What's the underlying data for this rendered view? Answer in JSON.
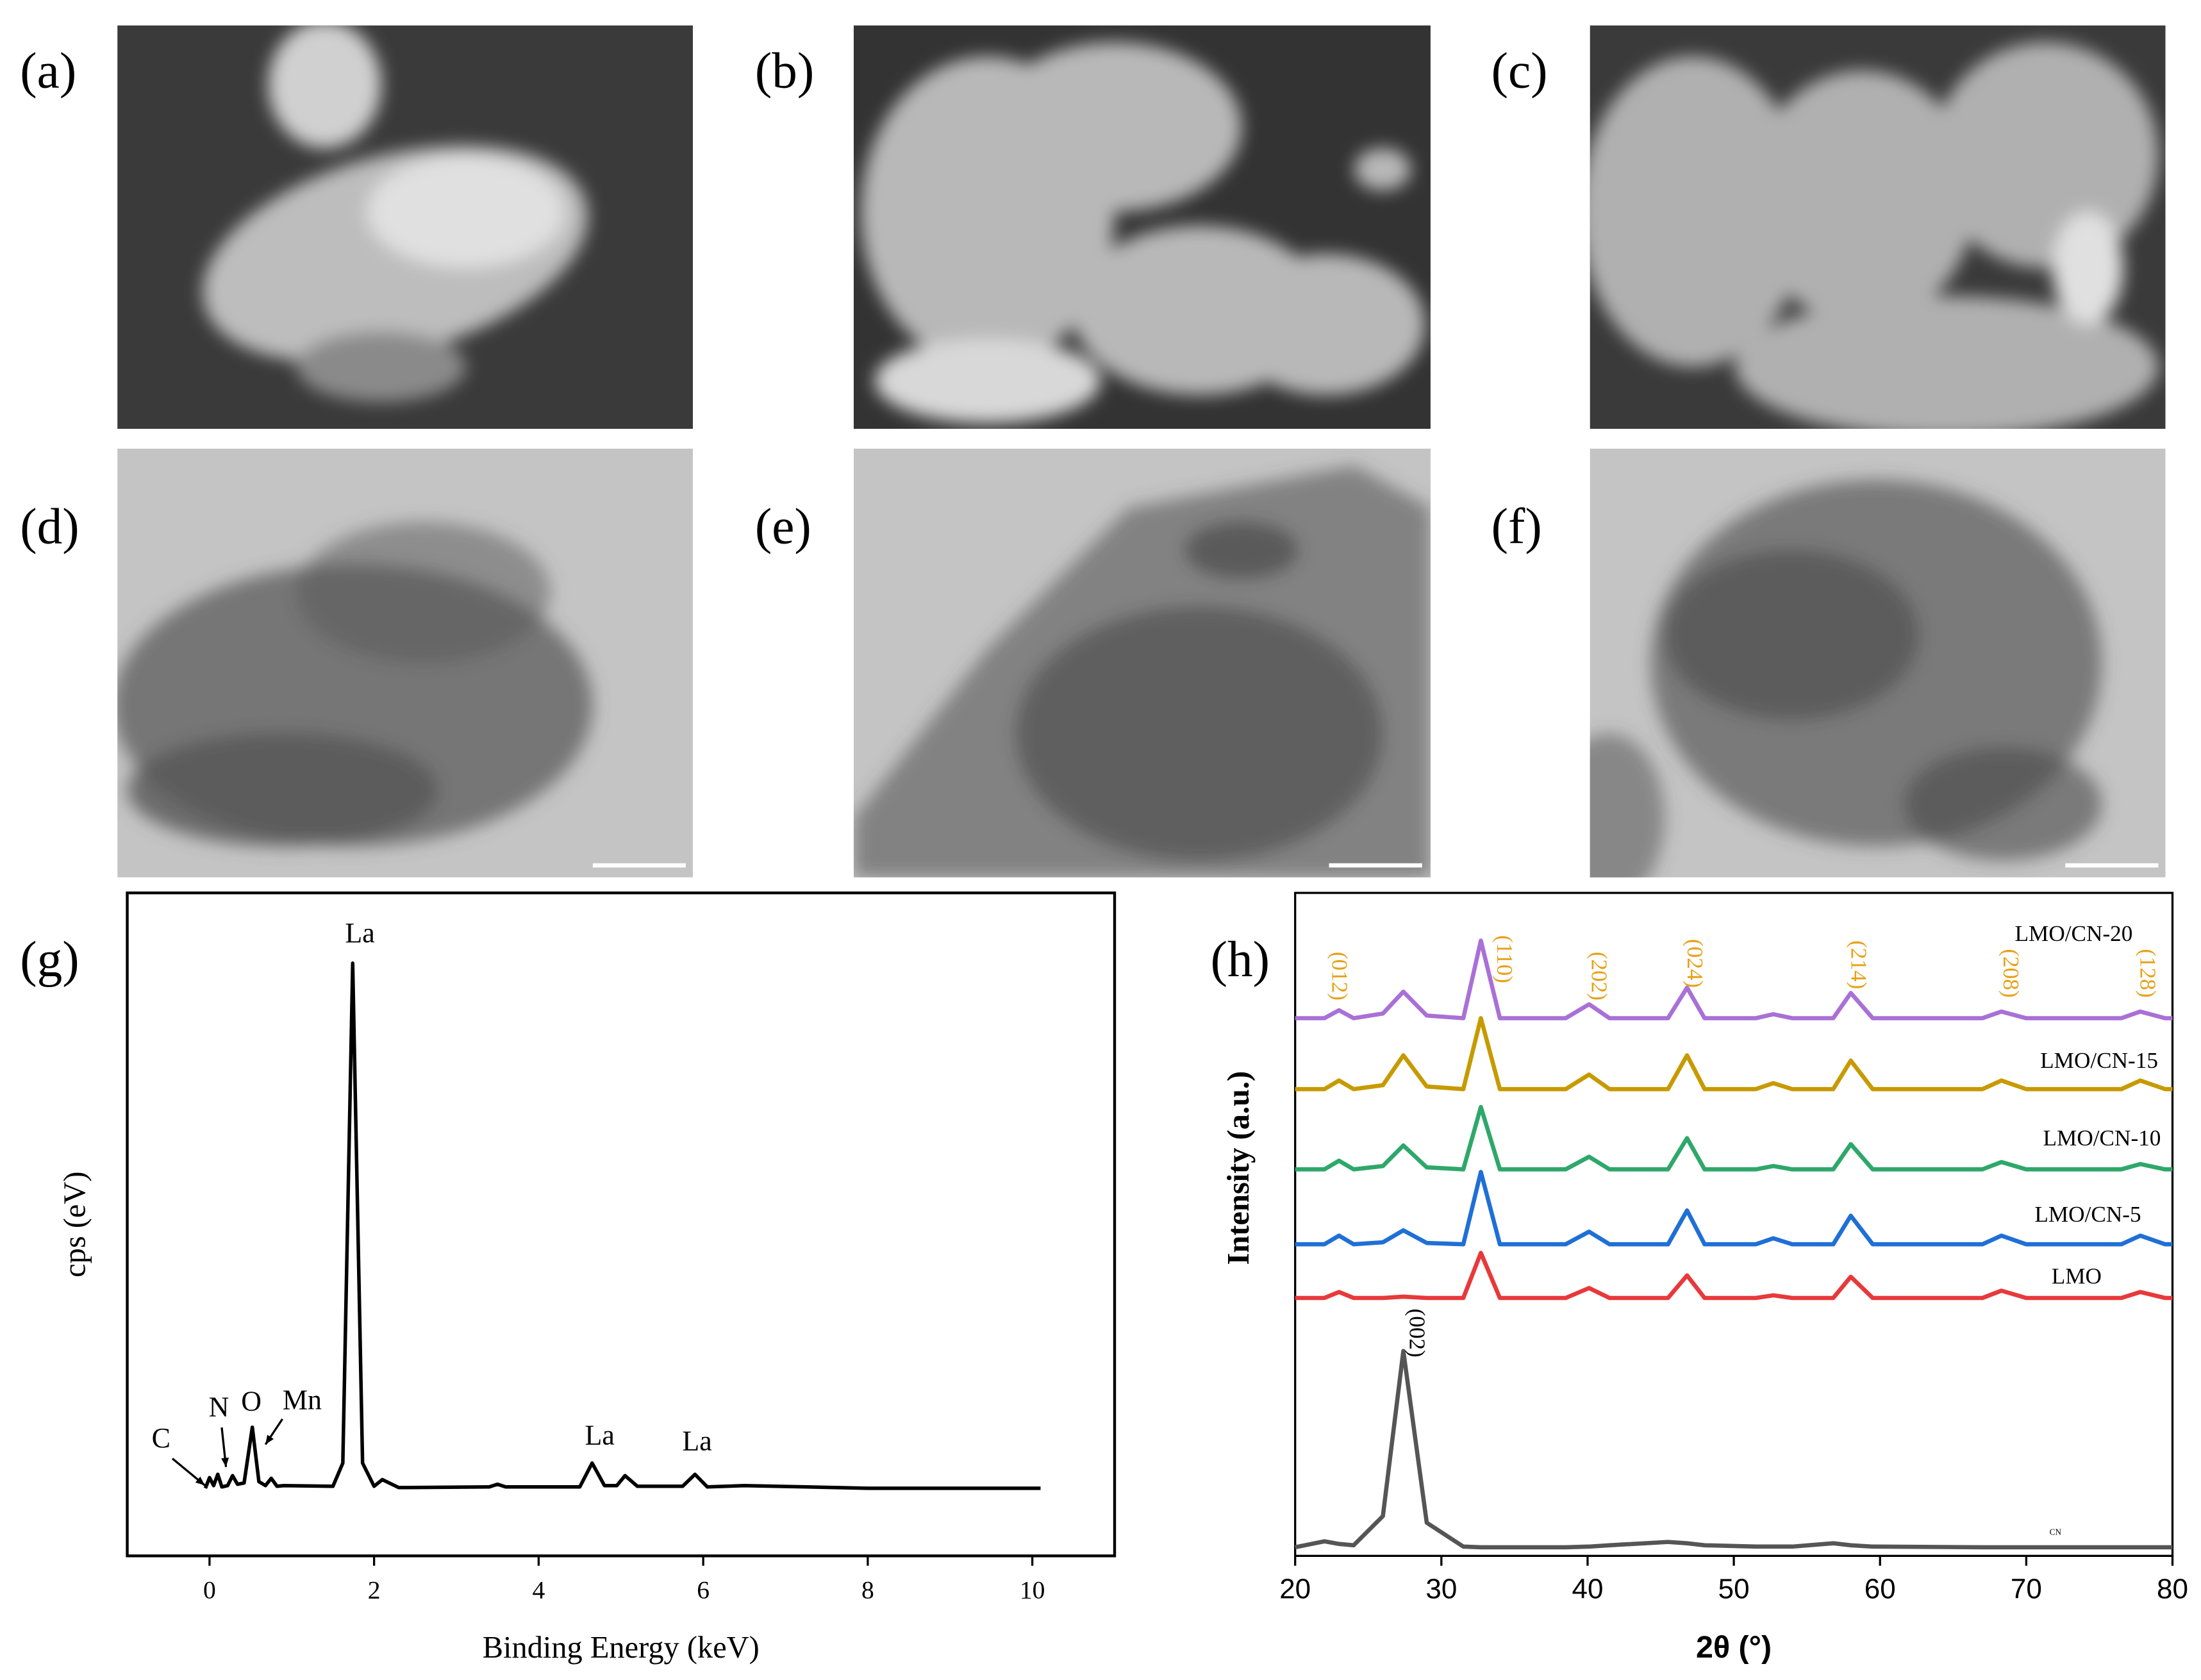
{
  "panel_labels": [
    "(a)",
    "(b)",
    "(c)",
    "(d)",
    "(e)",
    "(f)",
    "(g)",
    "(h)"
  ],
  "chart_data": [
    {
      "type": "line",
      "xlabel": "Binding Energy (keV)",
      "ylabel": "cps (eV)",
      "xlim": [
        -1,
        11
      ],
      "xticks": [
        0,
        2,
        4,
        6,
        8,
        10
      ],
      "ylim": [
        0,
        100
      ],
      "x": [
        -0.05,
        0,
        0.05,
        0.1,
        0.15,
        0.22,
        0.28,
        0.34,
        0.42,
        0.52,
        0.6,
        0.68,
        0.75,
        0.82,
        0.9,
        1.5,
        1.62,
        1.74,
        1.86,
        2.0,
        2.1,
        2.3,
        3.4,
        3.5,
        3.6,
        4.5,
        4.65,
        4.8,
        4.95,
        5.05,
        5.2,
        5.75,
        5.9,
        6.05,
        6.5,
        8,
        10.1
      ],
      "series": [
        {
          "color": "#000000",
          "values": [
            10.2,
            11.8,
            10.6,
            12.3,
            10.4,
            10.6,
            12.1,
            10.8,
            11,
            19.4,
            11.2,
            10.6,
            11.7,
            10.5,
            10.6,
            10.5,
            14,
            89.4,
            14,
            10.5,
            11.5,
            10.3,
            10.4,
            10.8,
            10.4,
            10.4,
            14,
            10.6,
            10.6,
            12.1,
            10.5,
            10.5,
            12.3,
            10.4,
            10.6,
            10.2,
            10.2
          ]
        }
      ],
      "annotations": [
        "La",
        "La",
        "La",
        "C",
        "N",
        "O",
        "Mn"
      ]
    },
    {
      "type": "line",
      "xlabel": "2θ (°)",
      "ylabel": "Intensity (a.u.)",
      "xlim": [
        20,
        80
      ],
      "xticks": [
        20,
        30,
        40,
        50,
        60,
        70,
        80
      ],
      "ylim": [
        0,
        100
      ],
      "x": [
        20,
        22,
        23,
        24,
        26,
        27.4,
        29,
        31.5,
        32.7,
        34,
        38.5,
        40.1,
        41.5,
        45.5,
        46.8,
        48,
        51.5,
        52.7,
        54,
        56.8,
        58,
        59.5,
        67,
        68.3,
        70,
        76.5,
        77.8,
        79.5,
        80
      ],
      "series": [
        {
          "name": "LMO/CN-20",
          "color": "#a970d6",
          "values": [
            81.1,
            81.1,
            82.3,
            81.1,
            81.8,
            85.1,
            81.5,
            81.1,
            92.8,
            81.1,
            81.1,
            83.2,
            81.1,
            81.1,
            85.7,
            81.1,
            81.1,
            81.7,
            81.1,
            81.1,
            84.9,
            81.1,
            81.1,
            82.1,
            81.1,
            81.1,
            82.1,
            81.1,
            81.1
          ]
        },
        {
          "name": "LMO/CN-15",
          "color": "#c79a00",
          "values": [
            70.4,
            70.4,
            71.7,
            70.4,
            71,
            75.5,
            70.8,
            70.4,
            81.1,
            70.4,
            70.4,
            72.6,
            70.4,
            70.4,
            75.5,
            70.4,
            70.4,
            71.3,
            70.4,
            70.4,
            74.7,
            70.4,
            70.4,
            71.7,
            70.4,
            70.4,
            71.7,
            70.4,
            70.4
          ]
        },
        {
          "name": "LMO/CN-10",
          "color": "#2ea86a",
          "values": [
            58.3,
            58.3,
            59.6,
            58.3,
            58.8,
            61.9,
            58.6,
            58.3,
            67.7,
            58.3,
            58.3,
            60.2,
            58.3,
            58.3,
            63,
            58.3,
            58.3,
            58.8,
            58.3,
            58.3,
            62.1,
            58.3,
            58.3,
            59.4,
            58.3,
            58.3,
            59.1,
            58.3,
            58.3
          ]
        },
        {
          "name": "LMO/CN-5",
          "color": "#1f6fd6",
          "values": [
            47,
            47,
            48.3,
            47,
            47.3,
            49.1,
            47.2,
            47,
            57.9,
            47,
            47,
            48.9,
            47,
            47,
            52.1,
            47,
            47,
            47.9,
            47,
            47,
            51.3,
            47,
            47,
            48.3,
            47,
            47,
            48.3,
            47,
            47
          ]
        },
        {
          "name": "LMO",
          "color": "#e8393a",
          "values": [
            38.9,
            38.9,
            39.8,
            38.9,
            38.9,
            39.1,
            38.9,
            38.9,
            45.7,
            38.9,
            38.9,
            40.4,
            38.9,
            38.9,
            42.3,
            38.9,
            38.9,
            39.3,
            38.9,
            38.9,
            42.1,
            38.9,
            38.9,
            40,
            38.9,
            38.9,
            39.8,
            38.9,
            38.9
          ]
        },
        {
          "name": "CN",
          "color": "#555555",
          "values": [
            1.3,
            2.2,
            1.8,
            1.6,
            6,
            30.9,
            5,
            1.4,
            1.3,
            1.3,
            1.3,
            1.4,
            1.6,
            2.1,
            1.9,
            1.6,
            1.4,
            1.4,
            1.4,
            1.9,
            1.6,
            1.4,
            1.3,
            1.3,
            1.3,
            1.3,
            1.3,
            1.3,
            1.3
          ]
        }
      ],
      "peak_labels": [
        "(012)",
        "(110)",
        "(202)",
        "(024)",
        "(214)",
        "(208)",
        "(128)",
        "(002)"
      ],
      "peak_label_colors": [
        "#e6a117",
        "#e6a117",
        "#e6a117",
        "#e6a117",
        "#e6a117",
        "#e6a117",
        "#e6a117",
        "#000000"
      ]
    }
  ]
}
